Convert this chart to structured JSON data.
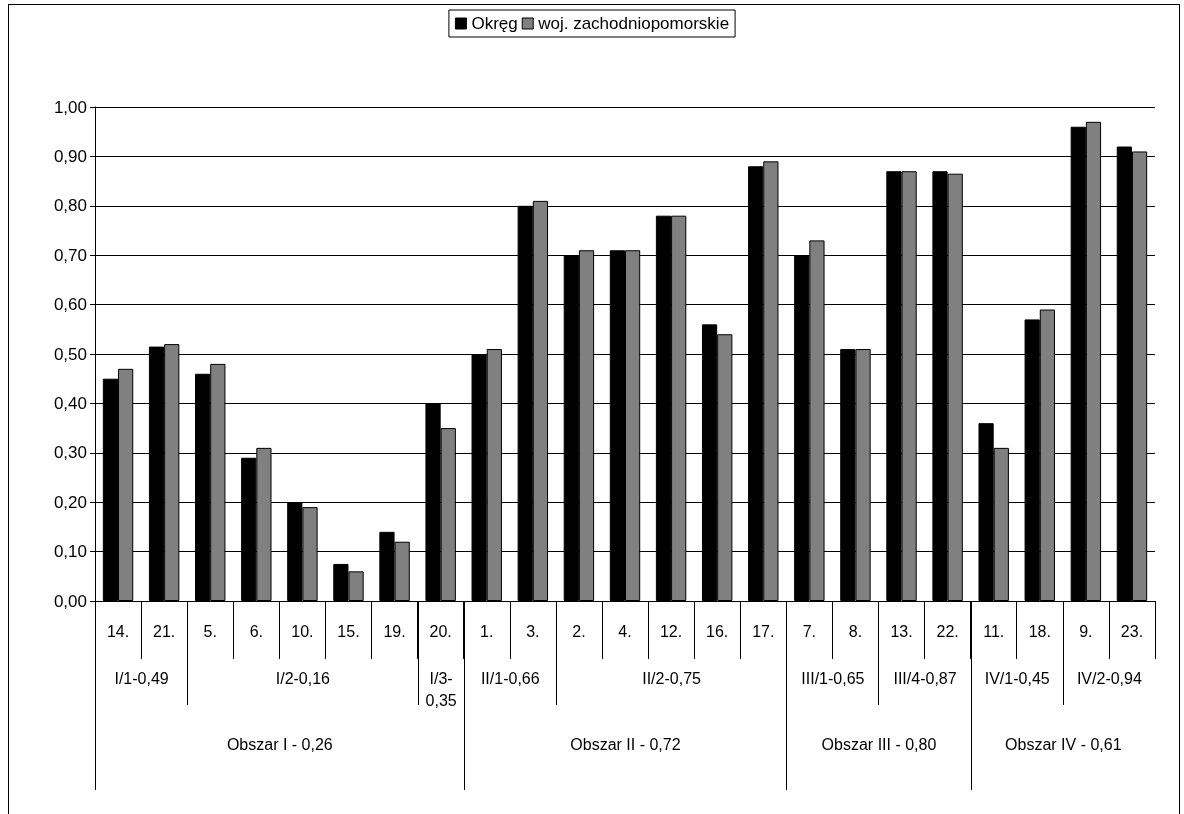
{
  "chart_data": {
    "type": "bar",
    "categories": [
      "14.",
      "21.",
      "5.",
      "6.",
      "10.",
      "15.",
      "19.",
      "20.",
      "1.",
      "3.",
      "2.",
      "4.",
      "12.",
      "16.",
      "17.",
      "7.",
      "8.",
      "13.",
      "22.",
      "11.",
      "18.",
      "9.",
      "23."
    ],
    "series": [
      {
        "name": "Okręg",
        "color": "#000000",
        "values": [
          0.45,
          0.515,
          0.46,
          0.29,
          0.2,
          0.075,
          0.14,
          0.4,
          0.5,
          0.8,
          0.7,
          0.71,
          0.78,
          0.56,
          0.88,
          0.7,
          0.51,
          0.87,
          0.87,
          0.36,
          0.57,
          0.96,
          0.92
        ]
      },
      {
        "name": "woj. zachodniopomorskie",
        "color": "#808080",
        "values": [
          0.47,
          0.52,
          0.48,
          0.31,
          0.19,
          0.06,
          0.12,
          0.35,
          0.51,
          0.81,
          0.71,
          0.71,
          0.78,
          0.54,
          0.89,
          0.73,
          0.51,
          0.87,
          0.865,
          0.31,
          0.59,
          0.97,
          0.91
        ]
      }
    ],
    "ylim": [
      0,
      1
    ],
    "yticks": [
      {
        "value": 0,
        "label": "0,00"
      },
      {
        "value": 0.1,
        "label": "0,10"
      },
      {
        "value": 0.2,
        "label": "0,20"
      },
      {
        "value": 0.3,
        "label": "0,30"
      },
      {
        "value": 0.4,
        "label": "0,40"
      },
      {
        "value": 0.5,
        "label": "0,50"
      },
      {
        "value": 0.6,
        "label": "0,60"
      },
      {
        "value": 0.7,
        "label": "0,70"
      },
      {
        "value": 0.8,
        "label": "0,80"
      },
      {
        "value": 0.9,
        "label": "0,90"
      },
      {
        "value": 1,
        "label": "1,00"
      }
    ],
    "grid": "y",
    "legend": "top",
    "annotations": [
      "I/1-0,49",
      "I/2-0,16",
      "I/3-0,35",
      "II/1-0,66",
      "II/2-0,75",
      "III/1-0,65",
      "III/4-0,87",
      "IV/1-0,45",
      "IV/2-0,94",
      "Obszar I - 0,26",
      "Obszar II - 0,72",
      "Obszar III - 0,80",
      "Obszar IV - 0,61"
    ]
  }
}
